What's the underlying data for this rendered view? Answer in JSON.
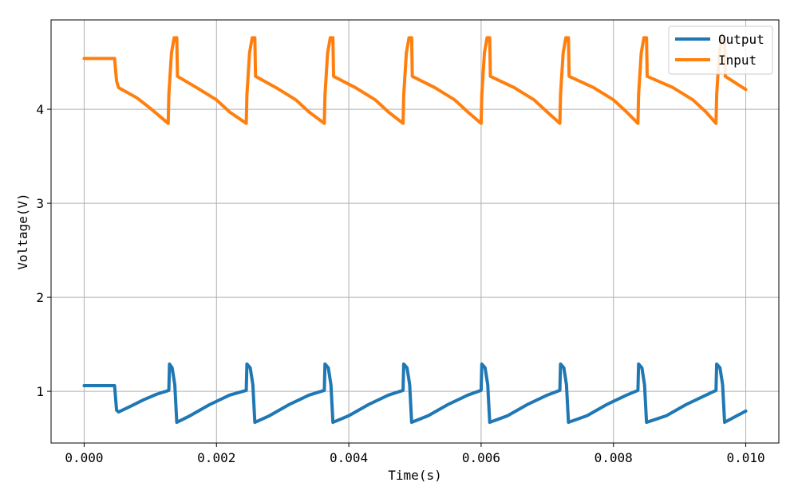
{
  "chart_data": {
    "type": "line",
    "title": "",
    "xlabel": "Time(s)",
    "ylabel": "Voltage(V)",
    "xlim": [
      -0.0005,
      0.0105
    ],
    "ylim": [
      0.45,
      4.95
    ],
    "grid": true,
    "legend_position": "top-right",
    "x_ticks": [
      {
        "value": 0.0,
        "label": "0.000"
      },
      {
        "value": 0.002,
        "label": "0.002"
      },
      {
        "value": 0.004,
        "label": "0.004"
      },
      {
        "value": 0.006,
        "label": "0.006"
      },
      {
        "value": 0.008,
        "label": "0.008"
      },
      {
        "value": 0.01,
        "label": "0.010"
      }
    ],
    "y_ticks": [
      {
        "value": 1,
        "label": "1"
      },
      {
        "value": 2,
        "label": "2"
      },
      {
        "value": 3,
        "label": "3"
      },
      {
        "value": 4,
        "label": "4"
      }
    ],
    "series": [
      {
        "name": "Output",
        "color": "#1f77b4",
        "points": [
          [
            0.0,
            1.06
          ],
          [
            0.00046,
            1.06
          ],
          [
            0.00049,
            0.8
          ],
          [
            0.00052,
            0.78
          ],
          [
            0.0007,
            0.84
          ],
          [
            0.0009,
            0.91
          ],
          [
            0.0011,
            0.97
          ],
          [
            0.00128,
            1.01
          ],
          [
            0.00129,
            1.29
          ],
          [
            0.00133,
            1.25
          ],
          [
            0.00137,
            1.07
          ],
          [
            0.0014,
            0.67
          ],
          [
            0.0016,
            0.74
          ],
          [
            0.0019,
            0.86
          ],
          [
            0.0022,
            0.96
          ],
          [
            0.00245,
            1.01
          ],
          [
            0.00246,
            1.29
          ],
          [
            0.00251,
            1.25
          ],
          [
            0.00255,
            1.07
          ],
          [
            0.00258,
            0.67
          ],
          [
            0.0028,
            0.74
          ],
          [
            0.0031,
            0.86
          ],
          [
            0.0034,
            0.96
          ],
          [
            0.00363,
            1.01
          ],
          [
            0.00364,
            1.29
          ],
          [
            0.00369,
            1.25
          ],
          [
            0.00373,
            1.07
          ],
          [
            0.00376,
            0.67
          ],
          [
            0.004,
            0.74
          ],
          [
            0.0043,
            0.86
          ],
          [
            0.0046,
            0.96
          ],
          [
            0.00482,
            1.01
          ],
          [
            0.00483,
            1.29
          ],
          [
            0.00488,
            1.25
          ],
          [
            0.00492,
            1.07
          ],
          [
            0.00495,
            0.67
          ],
          [
            0.0052,
            0.74
          ],
          [
            0.0055,
            0.86
          ],
          [
            0.0058,
            0.96
          ],
          [
            0.006,
            1.01
          ],
          [
            0.00601,
            1.29
          ],
          [
            0.00606,
            1.25
          ],
          [
            0.0061,
            1.07
          ],
          [
            0.00613,
            0.67
          ],
          [
            0.0064,
            0.74
          ],
          [
            0.0067,
            0.86
          ],
          [
            0.007,
            0.96
          ],
          [
            0.00719,
            1.01
          ],
          [
            0.0072,
            1.29
          ],
          [
            0.00725,
            1.25
          ],
          [
            0.00729,
            1.07
          ],
          [
            0.00732,
            0.67
          ],
          [
            0.0076,
            0.74
          ],
          [
            0.0079,
            0.86
          ],
          [
            0.0082,
            0.96
          ],
          [
            0.00837,
            1.01
          ],
          [
            0.00838,
            1.29
          ],
          [
            0.00843,
            1.25
          ],
          [
            0.00847,
            1.07
          ],
          [
            0.0085,
            0.67
          ],
          [
            0.0088,
            0.74
          ],
          [
            0.0091,
            0.86
          ],
          [
            0.0094,
            0.96
          ],
          [
            0.00955,
            1.01
          ],
          [
            0.00956,
            1.29
          ],
          [
            0.00961,
            1.25
          ],
          [
            0.00965,
            1.07
          ],
          [
            0.00968,
            0.67
          ],
          [
            0.01,
            0.79
          ]
        ]
      },
      {
        "name": "Input",
        "color": "#ff7f0e",
        "points": [
          [
            0.0,
            4.54
          ],
          [
            0.00046,
            4.54
          ],
          [
            0.00049,
            4.3
          ],
          [
            0.00052,
            4.23
          ],
          [
            0.0008,
            4.12
          ],
          [
            0.001,
            4.01
          ],
          [
            0.00127,
            3.85
          ],
          [
            0.00128,
            4.15
          ],
          [
            0.00132,
            4.6
          ],
          [
            0.00136,
            4.76
          ],
          [
            0.0014,
            4.76
          ],
          [
            0.00141,
            4.35
          ],
          [
            0.0017,
            4.23
          ],
          [
            0.002,
            4.1
          ],
          [
            0.0022,
            3.97
          ],
          [
            0.00245,
            3.85
          ],
          [
            0.00246,
            4.15
          ],
          [
            0.0025,
            4.6
          ],
          [
            0.00254,
            4.76
          ],
          [
            0.00258,
            4.76
          ],
          [
            0.00259,
            4.35
          ],
          [
            0.0029,
            4.23
          ],
          [
            0.0032,
            4.1
          ],
          [
            0.0034,
            3.97
          ],
          [
            0.00363,
            3.85
          ],
          [
            0.00364,
            4.15
          ],
          [
            0.00368,
            4.6
          ],
          [
            0.00372,
            4.76
          ],
          [
            0.00376,
            4.76
          ],
          [
            0.00377,
            4.35
          ],
          [
            0.0041,
            4.23
          ],
          [
            0.0044,
            4.1
          ],
          [
            0.0046,
            3.97
          ],
          [
            0.00482,
            3.85
          ],
          [
            0.00483,
            4.15
          ],
          [
            0.00487,
            4.6
          ],
          [
            0.00491,
            4.76
          ],
          [
            0.00495,
            4.76
          ],
          [
            0.00496,
            4.35
          ],
          [
            0.0053,
            4.23
          ],
          [
            0.0056,
            4.1
          ],
          [
            0.0058,
            3.97
          ],
          [
            0.006,
            3.85
          ],
          [
            0.00601,
            4.15
          ],
          [
            0.00605,
            4.6
          ],
          [
            0.00609,
            4.76
          ],
          [
            0.00613,
            4.76
          ],
          [
            0.00614,
            4.35
          ],
          [
            0.0065,
            4.23
          ],
          [
            0.0068,
            4.1
          ],
          [
            0.007,
            3.97
          ],
          [
            0.00719,
            3.85
          ],
          [
            0.0072,
            4.15
          ],
          [
            0.00724,
            4.6
          ],
          [
            0.00728,
            4.76
          ],
          [
            0.00732,
            4.76
          ],
          [
            0.00733,
            4.35
          ],
          [
            0.0077,
            4.23
          ],
          [
            0.008,
            4.1
          ],
          [
            0.0082,
            3.97
          ],
          [
            0.00837,
            3.85
          ],
          [
            0.00838,
            4.15
          ],
          [
            0.00842,
            4.6
          ],
          [
            0.00846,
            4.76
          ],
          [
            0.0085,
            4.76
          ],
          [
            0.00851,
            4.35
          ],
          [
            0.0089,
            4.23
          ],
          [
            0.0092,
            4.1
          ],
          [
            0.0094,
            3.97
          ],
          [
            0.00955,
            3.85
          ],
          [
            0.00956,
            4.15
          ],
          [
            0.0096,
            4.6
          ],
          [
            0.00964,
            4.76
          ],
          [
            0.00968,
            4.76
          ],
          [
            0.00969,
            4.35
          ],
          [
            0.01,
            4.21
          ]
        ]
      }
    ]
  }
}
